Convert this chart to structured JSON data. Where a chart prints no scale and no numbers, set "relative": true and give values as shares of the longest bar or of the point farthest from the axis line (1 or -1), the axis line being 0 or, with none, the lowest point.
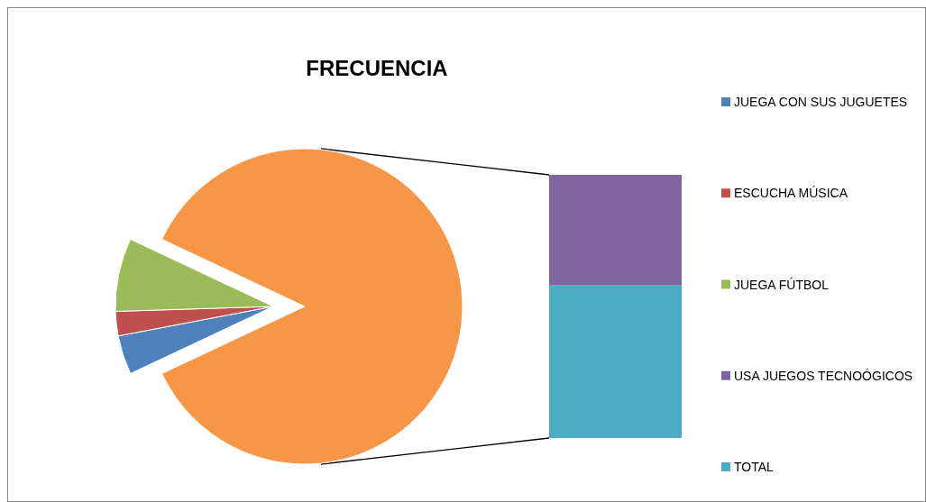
{
  "chart_data": [
    {
      "type": "pie",
      "title": "FRECUENCIA",
      "categories": [
        "JUEGA CON SUS JUGUETES",
        "ESCUCHA MÚSICA",
        "JUEGA FÚTBOL",
        null
      ],
      "values": [
        4,
        2.5,
        7.5,
        86
      ],
      "colors": [
        "#4f81bd",
        "#c0504d",
        "#9bbb59",
        "#f79646"
      ],
      "legend": "right"
    },
    {
      "type": "bar",
      "stacked": true,
      "relative": true,
      "categories": [
        null
      ],
      "series": [
        {
          "name": "TOTAL",
          "color": "#4bacc6",
          "values": [
            0.58
          ]
        },
        {
          "name": "USA JUEGOS TECNOÓGICOS",
          "color": "#8064a2",
          "values": [
            0.42
          ]
        }
      ],
      "legend": "right"
    }
  ]
}
